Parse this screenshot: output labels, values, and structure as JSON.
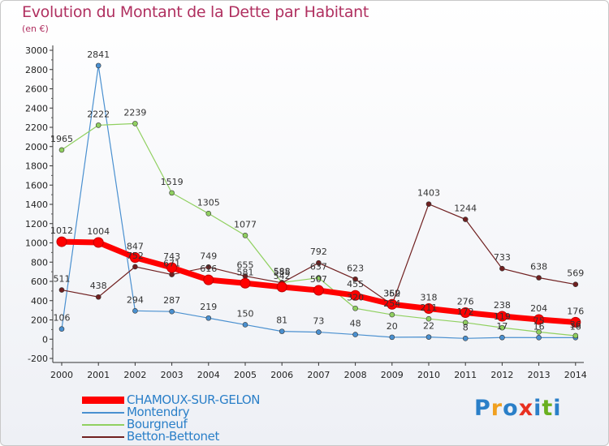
{
  "header": {
    "title": "Evolution du Montant de la Dette par Habitant",
    "unit": "(en €)"
  },
  "logo": {
    "text": "Proxiti",
    "colors": [
      "#2a7fc8",
      "#f0a020",
      "#2a7fc8",
      "#e83020",
      "#2a7fc8",
      "#6ab020",
      "#2a7fc8"
    ]
  },
  "chart_data": {
    "type": "line",
    "x": [
      2000,
      2001,
      2002,
      2003,
      2004,
      2005,
      2006,
      2007,
      2008,
      2009,
      2010,
      2011,
      2012,
      2013,
      2014
    ],
    "ylim": [
      -200,
      3000
    ],
    "yticks": [
      -200,
      0,
      200,
      400,
      600,
      800,
      1000,
      1200,
      1400,
      1600,
      1800,
      2000,
      2200,
      2400,
      2600,
      2800,
      3000
    ],
    "grid": false,
    "legend_position": "bottom-left",
    "series": [
      {
        "name": "CHAMOUX-SUR-GELON",
        "color": "#ff0000",
        "thick": true,
        "values": [
          1012,
          1004,
          847,
          743,
          616,
          581,
          542,
          507,
          455,
          362,
          318,
          276,
          238,
          204,
          176
        ]
      },
      {
        "name": "Montendry",
        "color": "#4a90d0",
        "thick": false,
        "values": [
          106,
          2841,
          294,
          287,
          219,
          150,
          81,
          73,
          48,
          20,
          22,
          8,
          17,
          16,
          16
        ]
      },
      {
        "name": "Bourgneuf",
        "color": "#90d060",
        "thick": false,
        "values": [
          1965,
          2222,
          2239,
          1519,
          1305,
          1077,
          588,
          637,
          320,
          254,
          211,
          172,
          119,
          75,
          36
        ]
      },
      {
        "name": "Betton-Bettonet",
        "color": "#702020",
        "thick": false,
        "values": [
          511,
          438,
          752,
          671,
          749,
          655,
          585,
          792,
          623,
          359,
          1403,
          1244,
          733,
          638,
          569
        ]
      }
    ]
  }
}
